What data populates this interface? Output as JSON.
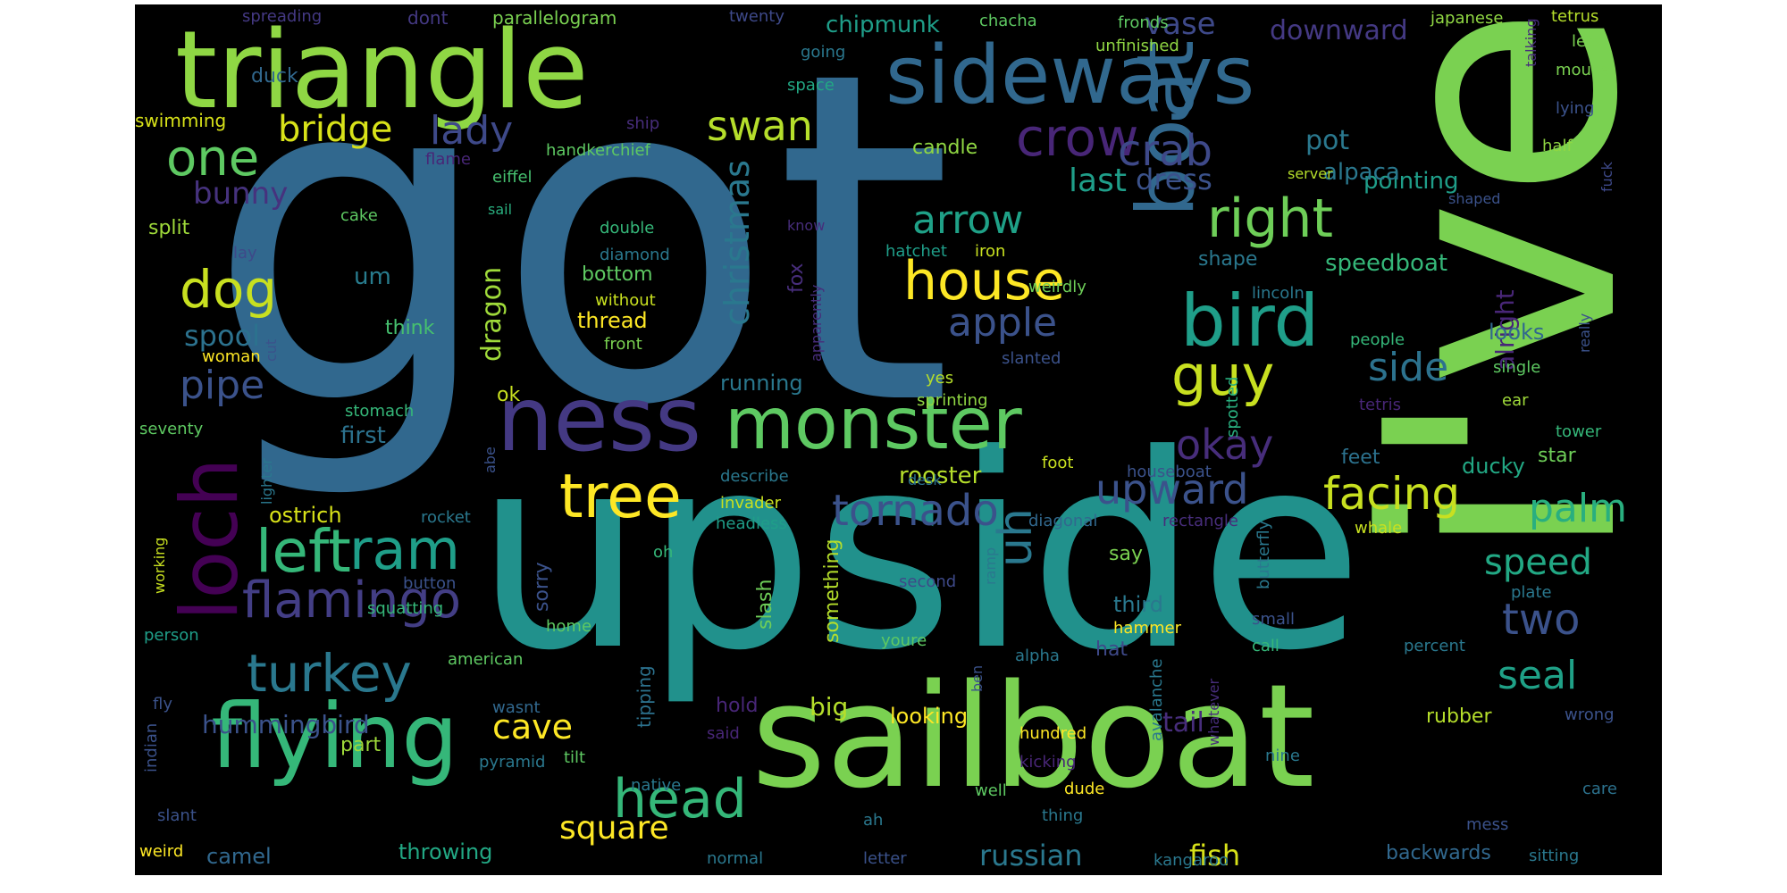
{
  "canvas_background": "#000000",
  "page_background": "#ffffff",
  "colormap": "viridis",
  "words": [
    {
      "text": "got",
      "color": "#31688e"
    },
    {
      "text": "upside",
      "color": "#21918c"
    },
    {
      "text": "sailboat",
      "color": "#7ad151"
    },
    {
      "text": "i've",
      "color": "#7ad151"
    },
    {
      "text": "triangle",
      "color": "#8fd744"
    },
    {
      "text": "sideways",
      "color": "#31688e"
    },
    {
      "text": "boat",
      "color": "#31688e"
    },
    {
      "text": "ness",
      "color": "#443983"
    },
    {
      "text": "monster",
      "color": "#5ec962"
    },
    {
      "text": "flying",
      "color": "#35b779"
    },
    {
      "text": "loch",
      "color": "#440154"
    },
    {
      "text": "bird",
      "color": "#1f9e89"
    },
    {
      "text": "tree",
      "color": "#fde725"
    },
    {
      "text": "guy",
      "color": "#c8e020"
    },
    {
      "text": "house",
      "color": "#fde725"
    },
    {
      "text": "right",
      "color": "#6ece58"
    },
    {
      "text": "left",
      "color": "#35b779"
    },
    {
      "text": "ram",
      "color": "#1f9e89"
    },
    {
      "text": "flamingo",
      "color": "#433e85"
    },
    {
      "text": "turkey",
      "color": "#2a788e"
    },
    {
      "text": "head",
      "color": "#35b779"
    },
    {
      "text": "tornado",
      "color": "#3b528b"
    },
    {
      "text": "upward",
      "color": "#3b528b"
    },
    {
      "text": "facing",
      "color": "#c8e020"
    },
    {
      "text": "crow",
      "color": "#482677"
    },
    {
      "text": "crab",
      "color": "#3e4989"
    },
    {
      "text": "dog",
      "color": "#c8e020"
    },
    {
      "text": "one",
      "color": "#5ec962"
    },
    {
      "text": "swan",
      "color": "#b5de2b"
    },
    {
      "text": "lady",
      "color": "#3e4989"
    },
    {
      "text": "bridge",
      "color": "#d8e219"
    },
    {
      "text": "arrow",
      "color": "#1fa187"
    },
    {
      "text": "apple",
      "color": "#3b528b"
    },
    {
      "text": "uh",
      "color": "#2a788e"
    },
    {
      "text": "okay",
      "color": "#472d7b"
    },
    {
      "text": "palm",
      "color": "#29af7f"
    },
    {
      "text": "speed",
      "color": "#22a884"
    },
    {
      "text": "two",
      "color": "#3b528b"
    },
    {
      "text": "seal",
      "color": "#1fa187"
    },
    {
      "text": "side",
      "color": "#2c728e"
    },
    {
      "text": "cave",
      "color": "#fde725"
    },
    {
      "text": "pipe",
      "color": "#3b528b"
    },
    {
      "text": "dragon",
      "color": "#9fda3a"
    },
    {
      "text": "christmas",
      "color": "#2a788e"
    },
    {
      "text": "square",
      "color": "#fde725"
    },
    {
      "text": "dress",
      "color": "#3b528b"
    },
    {
      "text": "last",
      "color": "#1f9e89"
    },
    {
      "text": "bunny",
      "color": "#46327e"
    },
    {
      "text": "spool",
      "color": "#2c728e"
    },
    {
      "text": "tail",
      "color": "#472d7b"
    },
    {
      "text": "russian",
      "color": "#2a788e"
    },
    {
      "text": "hummingbird",
      "color": "#3b528b"
    },
    {
      "text": "camel",
      "color": "#31688e"
    },
    {
      "text": "fish",
      "color": "#d8e219"
    },
    {
      "text": "big",
      "color": "#b5de2b"
    },
    {
      "text": "ostrich",
      "color": "#d8e219"
    },
    {
      "text": "rooster",
      "color": "#b5de2b"
    },
    {
      "text": "alright",
      "color": "#482677"
    },
    {
      "text": "pointing",
      "color": "#1f9e89"
    },
    {
      "text": "vase",
      "color": "#3e4989"
    },
    {
      "text": "downward",
      "color": "#443983"
    },
    {
      "text": "chipmunk",
      "color": "#1f9e89"
    },
    {
      "text": "pot",
      "color": "#2a788e"
    },
    {
      "text": "alpaca",
      "color": "#2a788e"
    },
    {
      "text": "speedboat",
      "color": "#35b779"
    },
    {
      "text": "thread",
      "color": "#fde725"
    },
    {
      "text": "bottom",
      "color": "#5ec962"
    },
    {
      "text": "running",
      "color": "#2a788e"
    },
    {
      "text": "looking",
      "color": "#fde725"
    },
    {
      "text": "throwing",
      "color": "#22a884"
    },
    {
      "text": "backwards",
      "color": "#31688e"
    },
    {
      "text": "rubber",
      "color": "#b5de2b"
    },
    {
      "text": "ducky",
      "color": "#22a884"
    },
    {
      "text": "star",
      "color": "#6ece58"
    },
    {
      "text": "feet",
      "color": "#2c728e"
    },
    {
      "text": "looks",
      "color": "#31688e"
    },
    {
      "text": "shape",
      "color": "#2a788e"
    },
    {
      "text": "um",
      "color": "#287c8e"
    },
    {
      "text": "split",
      "color": "#9fda3a"
    },
    {
      "text": "first",
      "color": "#2c728e"
    },
    {
      "text": "think",
      "color": "#46c06f"
    },
    {
      "text": "part",
      "color": "#9fda3a"
    },
    {
      "text": "third",
      "color": "#2a788e"
    },
    {
      "text": "say",
      "color": "#7ad151"
    },
    {
      "text": "hat",
      "color": "#3e4989"
    },
    {
      "text": "fox",
      "color": "#472d7b"
    },
    {
      "text": "candle",
      "color": "#90d743"
    },
    {
      "text": "tipping",
      "color": "#2c728e"
    },
    {
      "text": "something",
      "color": "#b5de2b"
    },
    {
      "text": "slash",
      "color": "#6ece58"
    },
    {
      "text": "sorry",
      "color": "#3b528b"
    },
    {
      "text": "spotted",
      "color": "#29af7f"
    },
    {
      "text": "hold",
      "color": "#482677"
    },
    {
      "text": "swimming",
      "color": "#d8e219"
    },
    {
      "text": "duck",
      "color": "#31688e"
    },
    {
      "text": "dont",
      "color": "#443983"
    },
    {
      "text": "parallelogram",
      "color": "#7ad151"
    },
    {
      "text": "spreading",
      "color": "#443983"
    },
    {
      "text": "twenty",
      "color": "#3e4989"
    },
    {
      "text": "chacha",
      "color": "#5ec962"
    },
    {
      "text": "fronds",
      "color": "#5ec962"
    },
    {
      "text": "unfinished",
      "color": "#90d743"
    },
    {
      "text": "japanese",
      "color": "#90d743"
    },
    {
      "text": "tetrus",
      "color": "#b5de2b"
    },
    {
      "text": "lets",
      "color": "#7ad151"
    },
    {
      "text": "mouse",
      "color": "#7ad151"
    },
    {
      "text": "lying",
      "color": "#3b528b"
    },
    {
      "text": "talking",
      "color": "#472d7b"
    },
    {
      "text": "going",
      "color": "#2a788e"
    },
    {
      "text": "space",
      "color": "#22a884"
    },
    {
      "text": "ship",
      "color": "#472d7b"
    },
    {
      "text": "handkerchief",
      "color": "#5ec962"
    },
    {
      "text": "flame",
      "color": "#482677"
    },
    {
      "text": "eiffel",
      "color": "#46c06f"
    },
    {
      "text": "server",
      "color": "#b5de2b"
    },
    {
      "text": "half",
      "color": "#90d743"
    },
    {
      "text": "shaped",
      "color": "#3b528b"
    },
    {
      "text": "fuck",
      "color": "#3e4989"
    },
    {
      "text": "cake",
      "color": "#5ec962"
    },
    {
      "text": "sail",
      "color": "#29af7f"
    },
    {
      "text": "double",
      "color": "#35b779"
    },
    {
      "text": "diamond",
      "color": "#2a788e"
    },
    {
      "text": "know",
      "color": "#472d7b"
    },
    {
      "text": "hatchet",
      "color": "#1f9e89"
    },
    {
      "text": "iron",
      "color": "#c8e020"
    },
    {
      "text": "lay",
      "color": "#3e4989"
    },
    {
      "text": "without",
      "color": "#c8e020"
    },
    {
      "text": "weirdly",
      "color": "#6ece58"
    },
    {
      "text": "lincoln",
      "color": "#2a788e"
    },
    {
      "text": "people",
      "color": "#35b779"
    },
    {
      "text": "single",
      "color": "#5ec962"
    },
    {
      "text": "really",
      "color": "#3b528b"
    },
    {
      "text": "front",
      "color": "#7ad151"
    },
    {
      "text": "woman",
      "color": "#fde725"
    },
    {
      "text": "cut",
      "color": "#3b528b"
    },
    {
      "text": "apparently",
      "color": "#472d7b"
    },
    {
      "text": "slanted",
      "color": "#3b528b"
    },
    {
      "text": "yes",
      "color": "#b5de2b"
    },
    {
      "text": "sprinting",
      "color": "#90d743"
    },
    {
      "text": "tetris",
      "color": "#482677"
    },
    {
      "text": "ear",
      "color": "#9fda3a"
    },
    {
      "text": "ok",
      "color": "#c8e020"
    },
    {
      "text": "stomach",
      "color": "#35b779"
    },
    {
      "text": "seventy",
      "color": "#5ec962"
    },
    {
      "text": "tower",
      "color": "#35b779"
    },
    {
      "text": "lighter",
      "color": "#2a788e"
    },
    {
      "text": "abe",
      "color": "#3b528b"
    },
    {
      "text": "describe",
      "color": "#2a788e"
    },
    {
      "text": "desk",
      "color": "#2c728e"
    },
    {
      "text": "foot",
      "color": "#c8e020"
    },
    {
      "text": "houseboat",
      "color": "#3b528b"
    },
    {
      "text": "invader",
      "color": "#c8e020"
    },
    {
      "text": "headless",
      "color": "#1f9e89"
    },
    {
      "text": "diagonal",
      "color": "#31688e"
    },
    {
      "text": "rectangle",
      "color": "#472d7b"
    },
    {
      "text": "whale",
      "color": "#c8e020"
    },
    {
      "text": "rocket",
      "color": "#2a788e"
    },
    {
      "text": "button",
      "color": "#3b528b"
    },
    {
      "text": "oh",
      "color": "#35b779"
    },
    {
      "text": "second",
      "color": "#3e4989"
    },
    {
      "text": "ramp",
      "color": "#2a788e"
    },
    {
      "text": "butterfly",
      "color": "#2a788e"
    },
    {
      "text": "plate",
      "color": "#2a788e"
    },
    {
      "text": "small",
      "color": "#3b528b"
    },
    {
      "text": "call",
      "color": "#35b779"
    },
    {
      "text": "percent",
      "color": "#2a788e"
    },
    {
      "text": "working",
      "color": "#c8e020"
    },
    {
      "text": "person",
      "color": "#1f9e89"
    },
    {
      "text": "squatting",
      "color": "#35b779"
    },
    {
      "text": "home",
      "color": "#5ec962"
    },
    {
      "text": "youre",
      "color": "#5ec962"
    },
    {
      "text": "hammer",
      "color": "#fde725"
    },
    {
      "text": "alpha",
      "color": "#2a788e"
    },
    {
      "text": "american",
      "color": "#5ec962"
    },
    {
      "text": "fly",
      "color": "#3b528b"
    },
    {
      "text": "wasnt",
      "color": "#31688e"
    },
    {
      "text": "ben",
      "color": "#3b528b"
    },
    {
      "text": "wrong",
      "color": "#3b528b"
    },
    {
      "text": "indian",
      "color": "#3b528b"
    },
    {
      "text": "pyramid",
      "color": "#2a788e"
    },
    {
      "text": "tilt",
      "color": "#5ec962"
    },
    {
      "text": "said",
      "color": "#482677"
    },
    {
      "text": "hundred",
      "color": "#fde725"
    },
    {
      "text": "kicking",
      "color": "#482677"
    },
    {
      "text": "avalanche",
      "color": "#2a788e"
    },
    {
      "text": "whatever",
      "color": "#472d7b"
    },
    {
      "text": "nine",
      "color": "#2a788e"
    },
    {
      "text": "native",
      "color": "#2a788e"
    },
    {
      "text": "dude",
      "color": "#fde725"
    },
    {
      "text": "well",
      "color": "#5ec962"
    },
    {
      "text": "care",
      "color": "#2c728e"
    },
    {
      "text": "slant",
      "color": "#3b528b"
    },
    {
      "text": "ah",
      "color": "#2a788e"
    },
    {
      "text": "thing",
      "color": "#2a788e"
    },
    {
      "text": "mess",
      "color": "#3b528b"
    },
    {
      "text": "weird",
      "color": "#fde725"
    },
    {
      "text": "normal",
      "color": "#2a788e"
    },
    {
      "text": "letter",
      "color": "#3b528b"
    },
    {
      "text": "kangaroo",
      "color": "#2a788e"
    },
    {
      "text": "sitting",
      "color": "#2a788e"
    }
  ]
}
